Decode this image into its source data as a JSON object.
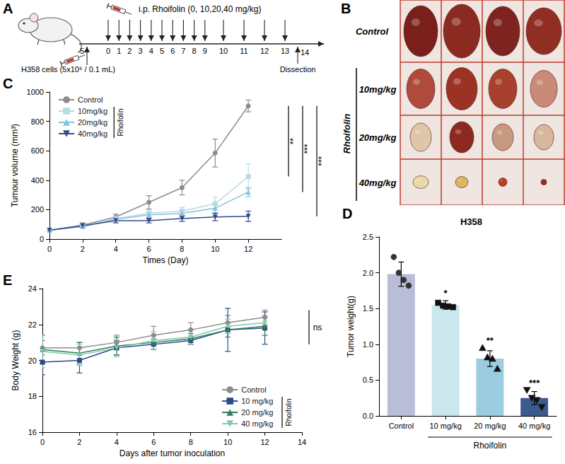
{
  "schematic": {
    "panel": "A",
    "injection": "i.p. Rhoifolin (0, 10,20,40 mg/kg)",
    "cells": "H358 cells (5x10⁶ / 0.1 mL)",
    "endpoint": "Dissection",
    "days": [
      -5,
      0,
      1,
      2,
      3,
      4,
      5,
      6,
      7,
      8,
      9,
      10,
      11,
      12,
      13,
      14
    ],
    "injection_days": [
      0,
      1,
      2,
      3,
      4,
      5,
      6,
      7,
      8,
      9,
      10,
      11,
      12,
      13
    ]
  },
  "photo": {
    "panel": "B",
    "rows": [
      "Control",
      "10mg/kg",
      "20mg/kg",
      "40mg/kg"
    ],
    "group_label": "Rhoifolin"
  },
  "chart_data": [
    {
      "panel": "C",
      "type": "line",
      "x_label": "Times (Day)",
      "y_label": "Tumour volume (mm³)",
      "x": [
        0,
        2,
        4,
        6,
        8,
        10,
        12
      ],
      "xlim": [
        0,
        14
      ],
      "xticks": [
        0,
        2,
        4,
        6,
        8,
        10,
        12
      ],
      "ylim": [
        0,
        1000
      ],
      "yticks": [
        0,
        200,
        400,
        600,
        800,
        1000
      ],
      "grid": false,
      "legend": "top-left",
      "legend_title": "Rhoifolin",
      "series": [
        {
          "name": "Control",
          "color": "#8c8c8c",
          "marker": "circle",
          "values": [
            60,
            95,
            150,
            250,
            350,
            585,
            905
          ],
          "errors": [
            8,
            15,
            20,
            45,
            50,
            95,
            40
          ]
        },
        {
          "name": "10mg/kg",
          "color": "#b5dbe6",
          "marker": "square",
          "values": [
            60,
            85,
            140,
            175,
            190,
            240,
            425
          ],
          "errors": [
            5,
            10,
            15,
            25,
            25,
            45,
            85
          ]
        },
        {
          "name": "20mg/kg",
          "color": "#86c0da",
          "marker": "triangle",
          "values": [
            60,
            85,
            135,
            165,
            175,
            210,
            320
          ],
          "errors": [
            5,
            10,
            15,
            20,
            20,
            30,
            30
          ]
        },
        {
          "name": "40mg/kg",
          "color": "#34488a",
          "marker": "triangle_down",
          "values": [
            60,
            90,
            125,
            125,
            140,
            150,
            155
          ],
          "errors": [
            5,
            10,
            15,
            15,
            20,
            25,
            35
          ]
        }
      ],
      "annotations": [
        {
          "text": "**",
          "series": "10mg/kg"
        },
        {
          "text": "***",
          "series": "20mg/kg"
        },
        {
          "text": "***",
          "series": "40mg/kg"
        }
      ]
    },
    {
      "panel": "D",
      "type": "bar",
      "title": "H358",
      "y_label": "Tumor weight(g)",
      "categories": [
        "Control",
        "10 mg/kg",
        "20 mg/kg",
        "40 mg/kg"
      ],
      "values": [
        1.98,
        1.55,
        0.8,
        0.25
      ],
      "errors": [
        0.17,
        0.06,
        0.11,
        0.09
      ],
      "points": [
        [
          2.22,
          2.0,
          1.9,
          1.82
        ],
        [
          1.58,
          1.54,
          1.53,
          1.52
        ],
        [
          0.95,
          0.82,
          0.8,
          0.66
        ],
        [
          0.36,
          0.25,
          0.22,
          0.12
        ]
      ],
      "marker": [
        "circle",
        "square",
        "triangle",
        "triangle_down"
      ],
      "colors": [
        "#b9bdd8",
        "#c9e7ec",
        "#9ccce0",
        "#3d5a8e"
      ],
      "significance": [
        null,
        "*",
        "**",
        "***"
      ],
      "group_label": "Rhoifolin",
      "ylim": [
        0,
        2.5
      ],
      "yticks": [
        {
          "value": 0,
          "label": "0.0"
        },
        {
          "value": 0.5,
          "label": "0.5"
        },
        {
          "value": 1,
          "label": "1.0"
        },
        {
          "value": 1.5,
          "label": "1.5"
        },
        {
          "value": 2,
          "label": "2.0"
        },
        {
          "value": 2.5,
          "label": "2.5"
        }
      ],
      "grid": false
    },
    {
      "panel": "E",
      "type": "line",
      "x_label": "Days after tumor inoculation",
      "y_label": "Body Weight (g)",
      "x": [
        0,
        2,
        4,
        6,
        8,
        10,
        12
      ],
      "xlim": [
        0,
        14
      ],
      "xticks": [
        0,
        2,
        4,
        6,
        8,
        10,
        12,
        14
      ],
      "ylim": [
        16,
        24
      ],
      "yticks": [
        16,
        18,
        20,
        22,
        24
      ],
      "grid": false,
      "legend": "bottom-right",
      "legend_title": "Rhoifolin",
      "series": [
        {
          "name": "Control",
          "color": "#8c8c8c",
          "marker": "circle",
          "values": [
            20.7,
            20.7,
            21.0,
            21.4,
            21.7,
            22.1,
            22.4
          ],
          "errors": [
            0.4,
            0.3,
            0.4,
            0.5,
            0.4,
            0.4,
            0.4
          ]
        },
        {
          "name": "10 mg/kg",
          "color": "#2c4a8a",
          "marker": "square",
          "values": [
            19.9,
            20.0,
            20.7,
            20.9,
            21.1,
            21.7,
            21.8
          ],
          "errors": [
            0.7,
            0.7,
            0.4,
            0.3,
            0.2,
            1.2,
            0.9
          ]
        },
        {
          "name": "20 mg/kg",
          "color": "#2e7d5e",
          "marker": "triangle",
          "values": [
            20.6,
            20.4,
            20.8,
            21.0,
            21.2,
            21.7,
            21.9
          ],
          "errors": [
            0.8,
            0.6,
            0.5,
            0.4,
            0.3,
            0.4,
            0.5
          ]
        },
        {
          "name": "40 mg/kg",
          "color": "#7fcaa8",
          "marker": "triangle_down",
          "values": [
            20.5,
            20.3,
            20.7,
            21.1,
            21.3,
            21.9,
            22.1
          ],
          "errors": [
            0.9,
            0.6,
            0.5,
            0.5,
            0.4,
            0.4,
            0.4
          ]
        }
      ],
      "annotations": [
        {
          "text": "ns"
        }
      ]
    }
  ]
}
